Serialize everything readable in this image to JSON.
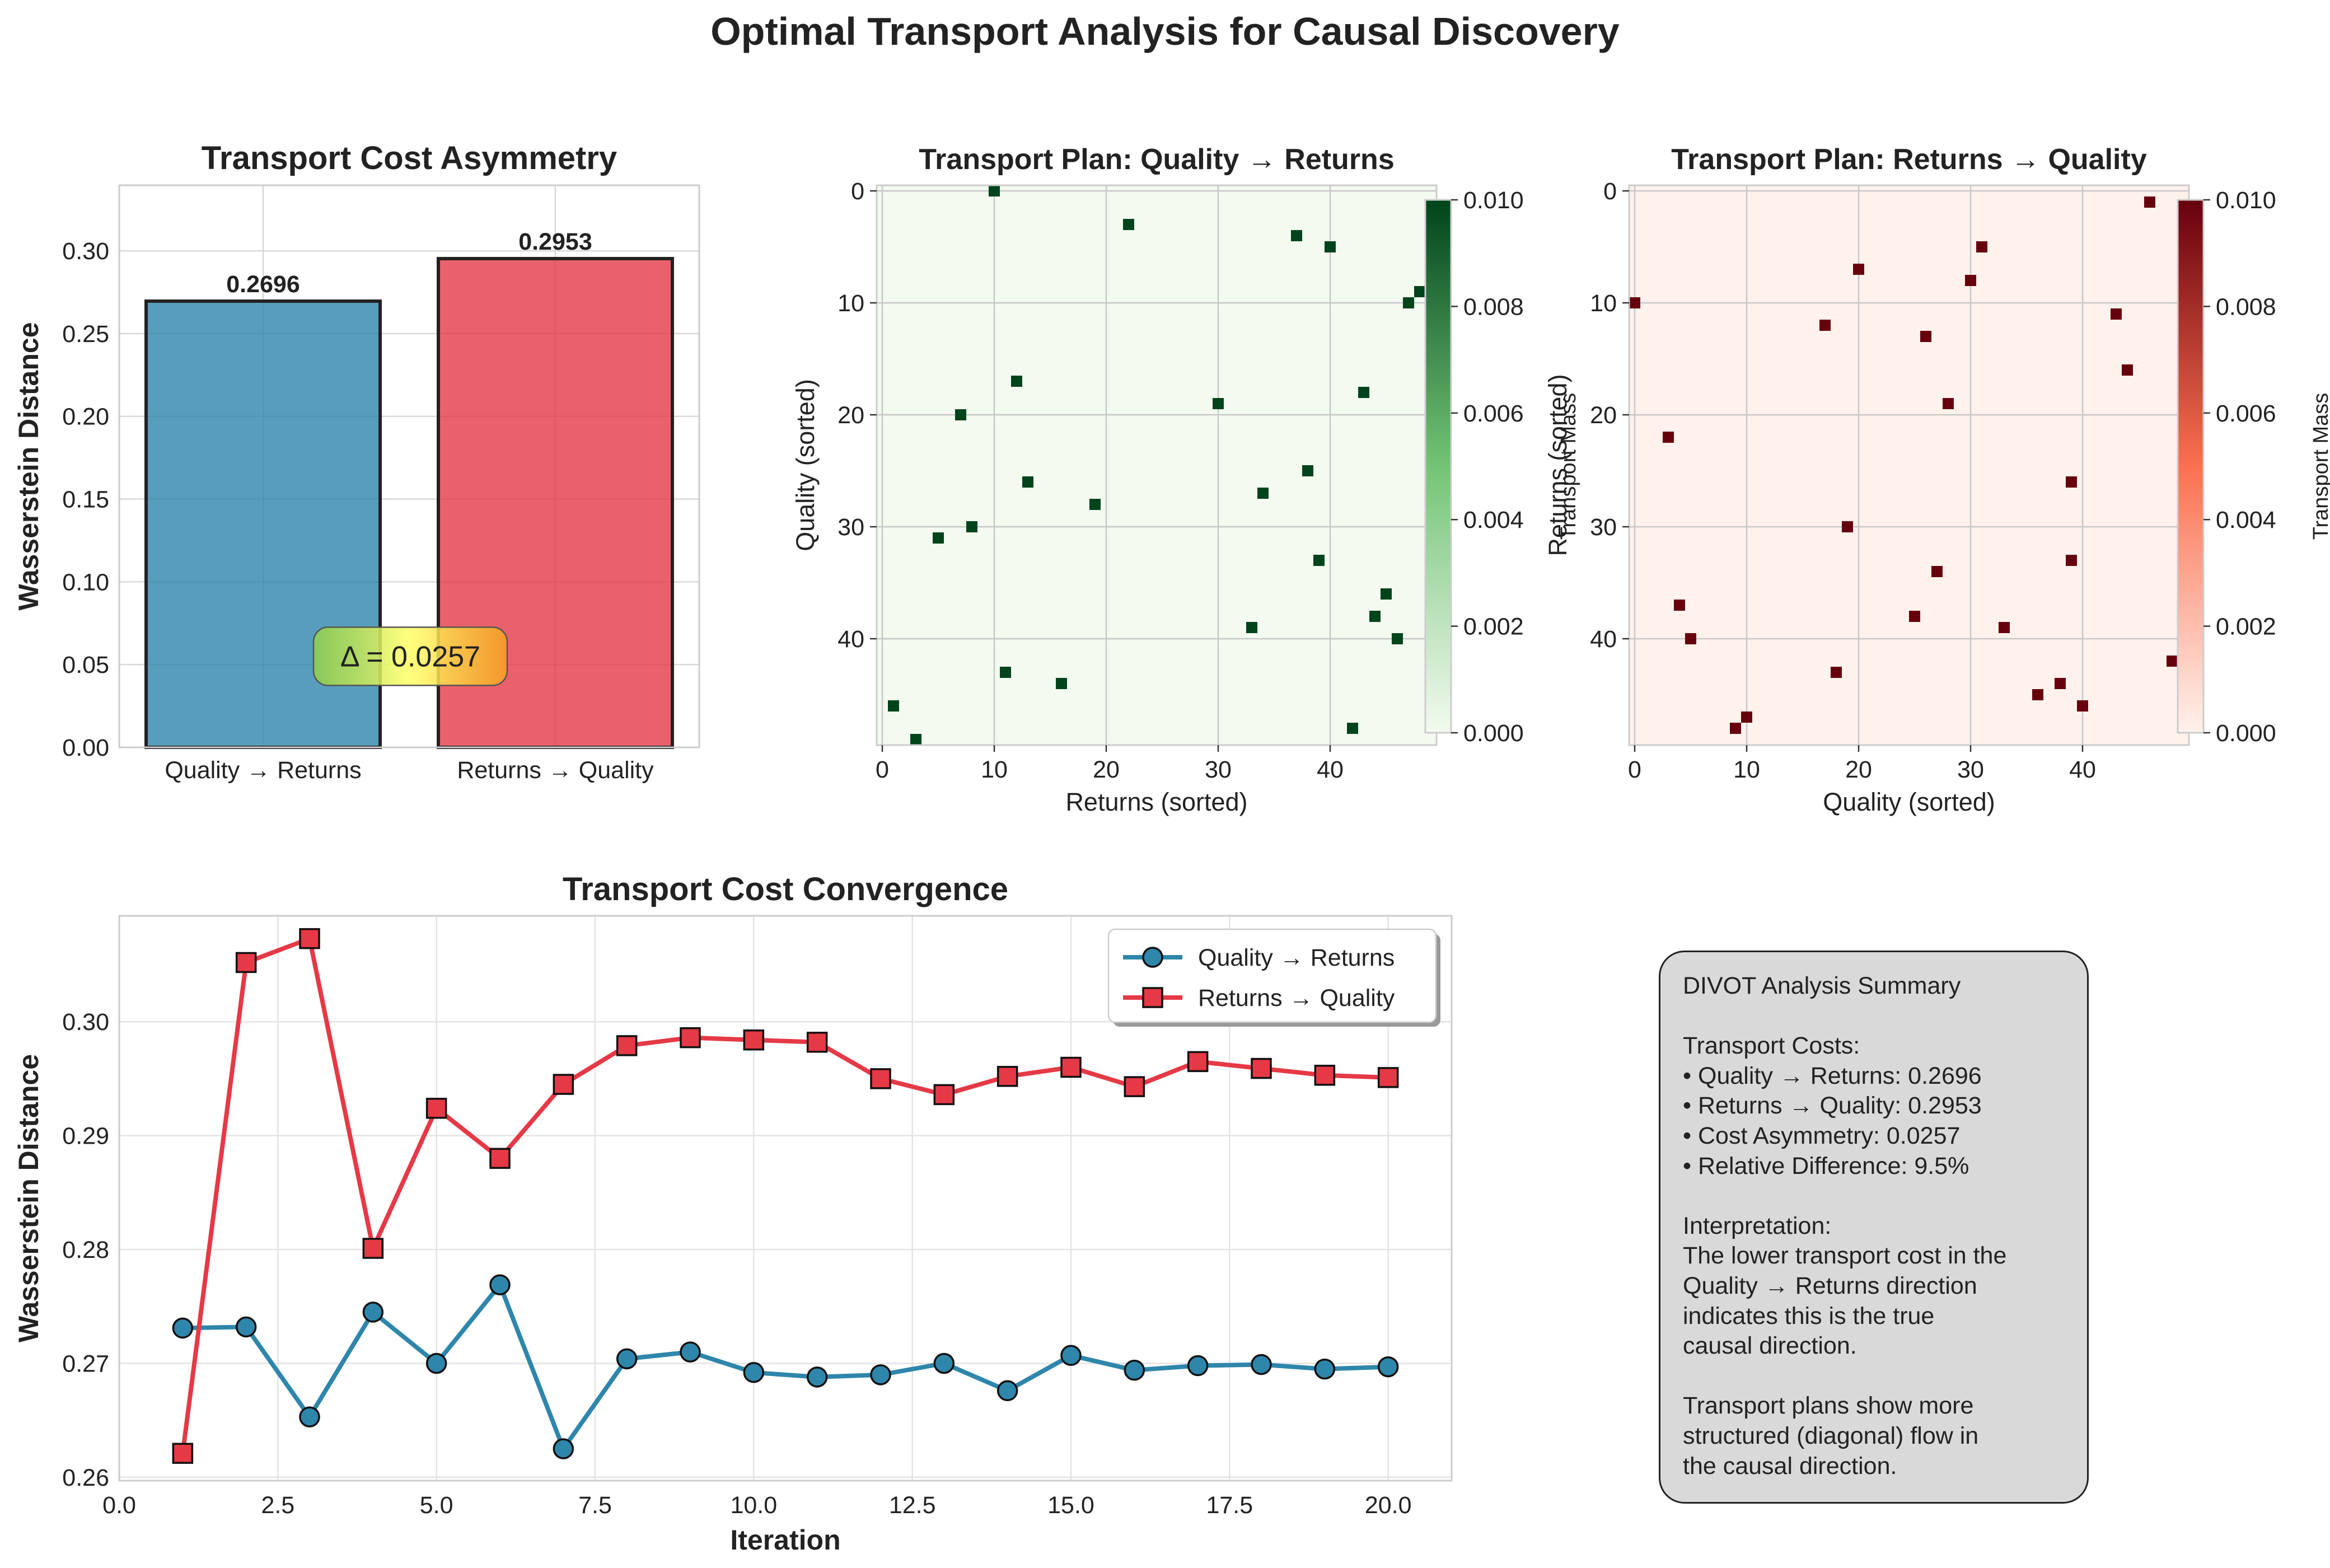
{
  "figure_title": "Optimal Transport Analysis for Causal Discovery",
  "colors": {
    "blue": "#2e86ab",
    "red": "#e63946",
    "green_max": "#00441b",
    "red_max": "#67000d",
    "grid": "#d8d8d8"
  },
  "chart_data": [
    {
      "id": "asymmetry",
      "type": "bar",
      "title": "Transport Cost Asymmetry",
      "xlabel": "",
      "ylabel": "Wasserstein Distance",
      "categories": [
        "Quality → Returns",
        "Returns → Quality"
      ],
      "values": [
        0.2696,
        0.2953
      ],
      "value_labels": [
        "0.2696",
        "0.2953"
      ],
      "colors": [
        "#2e86ab",
        "#e63946"
      ],
      "ylim": [
        0,
        0.3396
      ],
      "yticks": [
        0.0,
        0.05,
        0.1,
        0.15,
        0.2,
        0.25,
        0.3
      ],
      "ytick_labels": [
        "0.00",
        "0.05",
        "0.10",
        "0.15",
        "0.20",
        "0.25",
        "0.30"
      ],
      "annotation": "Δ = 0.0257",
      "annotation_y": 0.055,
      "grid": true
    },
    {
      "id": "plan_qr",
      "type": "heatmap",
      "title": "Transport Plan: Quality → Returns",
      "xlabel": "Returns (sorted)",
      "ylabel": "Quality (sorted)",
      "colormap": "Greens",
      "size": 50,
      "xticks": [
        0,
        10,
        20,
        30,
        40
      ],
      "yticks": [
        0,
        10,
        20,
        30,
        40
      ],
      "colorbar_label": "Transport Mass",
      "colorbar_ticks": [
        "0.000",
        "0.002",
        "0.004",
        "0.006",
        "0.008",
        "0.010"
      ],
      "vmin": 0.0,
      "vmax": 0.01,
      "cells": [
        [
          0,
          10
        ],
        [
          3,
          22
        ],
        [
          4,
          37
        ],
        [
          5,
          40
        ],
        [
          9,
          48
        ],
        [
          10,
          47
        ],
        [
          17,
          12
        ],
        [
          18,
          43
        ],
        [
          19,
          30
        ],
        [
          20,
          7
        ],
        [
          25,
          38
        ],
        [
          26,
          13
        ],
        [
          27,
          34
        ],
        [
          28,
          19
        ],
        [
          30,
          8
        ],
        [
          31,
          5
        ],
        [
          33,
          39
        ],
        [
          36,
          45
        ],
        [
          38,
          44
        ],
        [
          39,
          33
        ],
        [
          40,
          46
        ],
        [
          43,
          11
        ],
        [
          44,
          16
        ],
        [
          46,
          1
        ],
        [
          48,
          42
        ],
        [
          49,
          3
        ]
      ],
      "cell_value": 0.01,
      "grid": true
    },
    {
      "id": "plan_rq",
      "type": "heatmap",
      "title": "Transport Plan: Returns → Quality",
      "xlabel": "Quality (sorted)",
      "ylabel": "Returns (sorted)",
      "colormap": "Reds",
      "size": 50,
      "xticks": [
        0,
        10,
        20,
        30,
        40
      ],
      "yticks": [
        0,
        10,
        20,
        30,
        40
      ],
      "colorbar_label": "Transport Mass",
      "colorbar_ticks": [
        "0.000",
        "0.002",
        "0.004",
        "0.006",
        "0.008",
        "0.010"
      ],
      "vmin": 0.0,
      "vmax": 0.01,
      "cells": [
        [
          1,
          46
        ],
        [
          3,
          49
        ],
        [
          5,
          31
        ],
        [
          7,
          20
        ],
        [
          8,
          30
        ],
        [
          10,
          0
        ],
        [
          11,
          43
        ],
        [
          12,
          17
        ],
        [
          13,
          26
        ],
        [
          16,
          44
        ],
        [
          19,
          28
        ],
        [
          22,
          3
        ],
        [
          26,
          39
        ],
        [
          30,
          19
        ],
        [
          33,
          39
        ],
        [
          34,
          27
        ],
        [
          37,
          4
        ],
        [
          38,
          25
        ],
        [
          39,
          33
        ],
        [
          40,
          5
        ],
        [
          42,
          48
        ],
        [
          43,
          18
        ],
        [
          44,
          38
        ],
        [
          45,
          36
        ],
        [
          46,
          40
        ],
        [
          47,
          10
        ],
        [
          48,
          9
        ]
      ],
      "cell_value": 0.01,
      "grid": true
    },
    {
      "id": "convergence",
      "type": "line",
      "title": "Transport Cost Convergence",
      "xlabel": "Iteration",
      "ylabel": "Wasserstein Distance",
      "xlim": [
        0,
        21
      ],
      "ylim": [
        0.2597,
        0.3093
      ],
      "xticks": [
        0.0,
        2.5,
        5.0,
        7.5,
        10.0,
        12.5,
        15.0,
        17.5,
        20.0
      ],
      "xtick_labels": [
        "0.0",
        "2.5",
        "5.0",
        "7.5",
        "10.0",
        "12.5",
        "15.0",
        "17.5",
        "20.0"
      ],
      "yticks": [
        0.26,
        0.27,
        0.28,
        0.29,
        0.3
      ],
      "ytick_labels": [
        "0.26",
        "0.27",
        "0.28",
        "0.29",
        "0.30"
      ],
      "x": [
        1,
        2,
        3,
        4,
        5,
        6,
        7,
        8,
        9,
        10,
        11,
        12,
        13,
        14,
        15,
        16,
        17,
        18,
        19,
        20
      ],
      "series": [
        {
          "name": "Quality → Returns",
          "color": "#2e86ab",
          "marker": "circle",
          "values": [
            0.2731,
            0.2732,
            0.2653,
            0.2745,
            0.27,
            0.2769,
            0.2625,
            0.2704,
            0.271,
            0.2692,
            0.2688,
            0.269,
            0.27,
            0.2676,
            0.2707,
            0.2694,
            0.2698,
            0.2699,
            0.2695,
            0.2697
          ]
        },
        {
          "name": "Returns → Quality",
          "color": "#e63946",
          "marker": "square",
          "values": [
            0.2621,
            0.3052,
            0.3073,
            0.2801,
            0.2924,
            0.288,
            0.2945,
            0.2979,
            0.2986,
            0.2984,
            0.2982,
            0.295,
            0.2936,
            0.2952,
            0.296,
            0.2943,
            0.2965,
            0.2959,
            0.2953,
            0.2951
          ]
        }
      ],
      "legend_position": "top-right",
      "grid": true
    }
  ],
  "summary": {
    "lines": [
      "DIVOT Analysis Summary",
      "",
      "Transport Costs:",
      "• Quality → Returns: 0.2696",
      "• Returns → Quality: 0.2953",
      "• Cost Asymmetry: 0.0257",
      "• Relative Difference: 9.5%",
      "",
      "Interpretation:",
      "The lower transport cost in the",
      "Quality → Returns direction",
      "indicates this is the true",
      "causal direction.",
      "",
      "Transport plans show more",
      "structured (diagonal) flow in",
      "the causal direction."
    ]
  }
}
